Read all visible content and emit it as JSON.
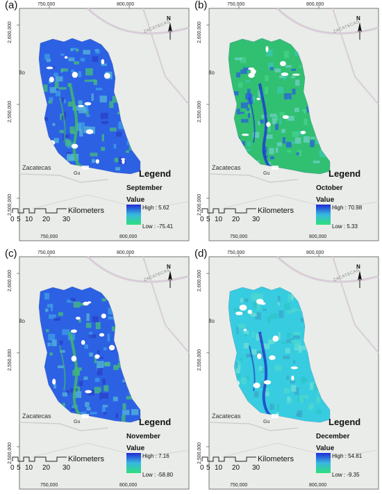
{
  "panels": [
    {
      "label": "(a)",
      "month": "September",
      "high": "High : 5.62",
      "low": "Low : -75.41",
      "theme": "blue"
    },
    {
      "label": "(b)",
      "month": "October",
      "high": "High : 70.98",
      "low": "Low : 5.33",
      "theme": "green"
    },
    {
      "label": "(c)",
      "month": "November",
      "high": "High : 7.16",
      "low": "Low : -58.80",
      "theme": "blue"
    },
    {
      "label": "(d)",
      "month": "December",
      "high": "High : 54.81",
      "low": "Low : -9.35",
      "theme": "cyan"
    }
  ],
  "common": {
    "legend_title": "Legend",
    "value_label": "Value",
    "scalebar_unit": "Kilometers",
    "scalebar_ticks": [
      "0",
      "5",
      "10",
      "20",
      "30"
    ],
    "x_ticks": [
      "750,000",
      "800,000"
    ],
    "y_ticks": [
      "2,600,000",
      "2,550,000",
      "2,500,000"
    ],
    "north": "N",
    "city": "Zacatecas",
    "town": "Gu",
    "road": "ZACATECAS",
    "edge_place": "llo"
  },
  "colors": {
    "ramp_high": "#1f2bd6",
    "ramp_low": "#2ee07a",
    "basemap": "#e9ece8",
    "road": "#d8cdd8"
  }
}
